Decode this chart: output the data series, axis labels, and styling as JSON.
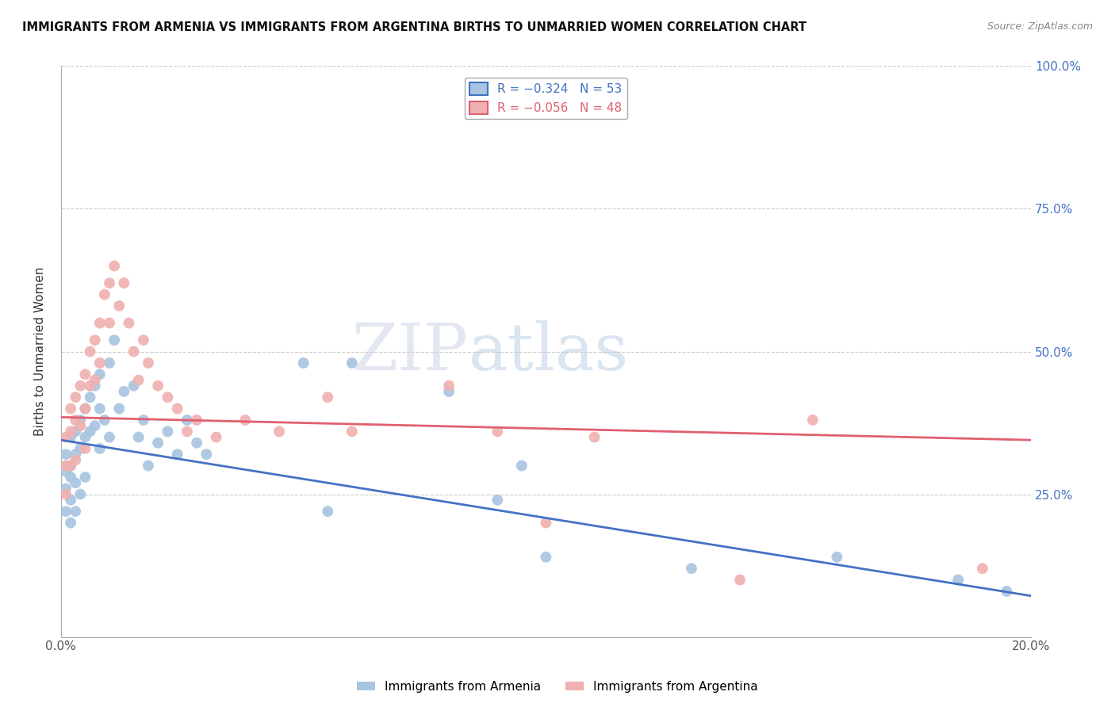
{
  "title": "IMMIGRANTS FROM ARMENIA VS IMMIGRANTS FROM ARGENTINA BIRTHS TO UNMARRIED WOMEN CORRELATION CHART",
  "source": "Source: ZipAtlas.com",
  "ylabel": "Births to Unmarried Women",
  "armenia_color": "#a8c4e0",
  "argentina_color": "#f0b0b0",
  "armenia_line_color": "#4472c4",
  "argentina_line_color": "#e06070",
  "watermark": "ZIPatlas",
  "legend_armenia": "R = −0.324   N = 53",
  "legend_argentina": "R = −0.056   N = 48",
  "xlim": [
    0.0,
    0.2
  ],
  "ylim": [
    0.0,
    1.0
  ],
  "right_yticks": [
    0.25,
    0.5,
    0.75,
    1.0
  ],
  "right_yticklabels": [
    "25.0%",
    "50.0%",
    "75.0%",
    "100.0%"
  ],
  "arm_line_x0": 0.0,
  "arm_line_y0": 0.345,
  "arm_line_x1": 0.2,
  "arm_line_y1": 0.072,
  "arg_line_x0": 0.0,
  "arg_line_y0": 0.385,
  "arg_line_x1": 0.2,
  "arg_line_y1": 0.345,
  "arm_x": [
    0.001,
    0.001,
    0.001,
    0.001,
    0.002,
    0.002,
    0.002,
    0.002,
    0.002,
    0.003,
    0.003,
    0.003,
    0.003,
    0.004,
    0.004,
    0.004,
    0.005,
    0.005,
    0.005,
    0.006,
    0.006,
    0.007,
    0.007,
    0.008,
    0.008,
    0.008,
    0.009,
    0.01,
    0.01,
    0.011,
    0.012,
    0.013,
    0.015,
    0.016,
    0.017,
    0.018,
    0.02,
    0.022,
    0.024,
    0.026,
    0.028,
    0.03,
    0.05,
    0.055,
    0.06,
    0.08,
    0.09,
    0.095,
    0.1,
    0.13,
    0.16,
    0.185,
    0.195
  ],
  "arm_y": [
    0.32,
    0.29,
    0.26,
    0.22,
    0.35,
    0.3,
    0.28,
    0.24,
    0.2,
    0.36,
    0.32,
    0.27,
    0.22,
    0.38,
    0.33,
    0.25,
    0.4,
    0.35,
    0.28,
    0.42,
    0.36,
    0.44,
    0.37,
    0.46,
    0.4,
    0.33,
    0.38,
    0.48,
    0.35,
    0.52,
    0.4,
    0.43,
    0.44,
    0.35,
    0.38,
    0.3,
    0.34,
    0.36,
    0.32,
    0.38,
    0.34,
    0.32,
    0.48,
    0.22,
    0.48,
    0.43,
    0.24,
    0.3,
    0.14,
    0.12,
    0.14,
    0.1,
    0.08
  ],
  "arg_x": [
    0.001,
    0.001,
    0.001,
    0.002,
    0.002,
    0.002,
    0.003,
    0.003,
    0.003,
    0.004,
    0.004,
    0.005,
    0.005,
    0.005,
    0.006,
    0.006,
    0.007,
    0.007,
    0.008,
    0.008,
    0.009,
    0.01,
    0.01,
    0.011,
    0.012,
    0.013,
    0.014,
    0.015,
    0.016,
    0.017,
    0.018,
    0.02,
    0.022,
    0.024,
    0.026,
    0.028,
    0.032,
    0.038,
    0.045,
    0.055,
    0.06,
    0.08,
    0.09,
    0.1,
    0.11,
    0.14,
    0.155,
    0.19
  ],
  "arg_y": [
    0.35,
    0.3,
    0.25,
    0.4,
    0.36,
    0.3,
    0.42,
    0.38,
    0.31,
    0.44,
    0.37,
    0.46,
    0.4,
    0.33,
    0.5,
    0.44,
    0.52,
    0.45,
    0.55,
    0.48,
    0.6,
    0.62,
    0.55,
    0.65,
    0.58,
    0.62,
    0.55,
    0.5,
    0.45,
    0.52,
    0.48,
    0.44,
    0.42,
    0.4,
    0.36,
    0.38,
    0.35,
    0.38,
    0.36,
    0.42,
    0.36,
    0.44,
    0.36,
    0.2,
    0.35,
    0.1,
    0.38,
    0.12
  ]
}
